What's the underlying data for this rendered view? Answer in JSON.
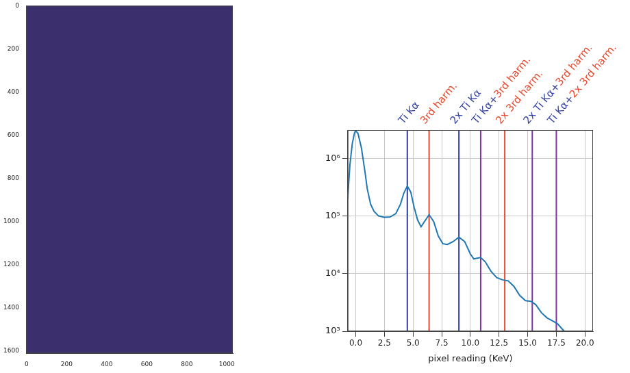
{
  "chart_data": [
    {
      "type": "image",
      "color": "#3b2f6e",
      "xlim": [
        0,
        1030
      ],
      "ylim": [
        0,
        1610
      ],
      "xticks": [
        0,
        200,
        400,
        600,
        800,
        1000
      ],
      "yticks": [
        0,
        200,
        400,
        600,
        800,
        1000,
        1200,
        1400,
        1600
      ],
      "grid": false
    },
    {
      "type": "line",
      "log": "y",
      "grid": true,
      "color": "#1f77b4",
      "xlabel": "pixel reading (KeV)",
      "xlim": [
        -0.7,
        20.7
      ],
      "ylim": [
        1000,
        3100000
      ],
      "xticks": [
        {
          "value": 0,
          "label": "0.0"
        },
        {
          "value": 2.5,
          "label": "2.5"
        },
        {
          "value": 5,
          "label": "5.0"
        },
        {
          "value": 7.5,
          "label": "7.5"
        },
        {
          "value": 10,
          "label": "10.0"
        },
        {
          "value": 12.5,
          "label": "12.5"
        },
        {
          "value": 15,
          "label": "15.0"
        },
        {
          "value": 17.5,
          "label": "17.5"
        },
        {
          "value": 20,
          "label": "20.0"
        }
      ],
      "yticks": [
        {
          "value": 1000,
          "label": "10³"
        },
        {
          "value": 10000,
          "label": "10⁴"
        },
        {
          "value": 100000,
          "label": "10⁵"
        },
        {
          "value": 1000000,
          "label": "10⁶"
        }
      ],
      "x": [
        -0.7,
        -0.5,
        -0.3,
        -0.1,
        0.0,
        0.2,
        0.5,
        0.8,
        1.0,
        1.3,
        1.6,
        2.0,
        2.5,
        3.0,
        3.5,
        3.9,
        4.2,
        4.5,
        4.8,
        5.1,
        5.4,
        5.7,
        6.0,
        6.4,
        6.8,
        7.2,
        7.6,
        8.0,
        8.5,
        9.0,
        9.5,
        10.0,
        10.3,
        10.6,
        10.9,
        11.3,
        11.8,
        12.3,
        12.8,
        13.3,
        13.8,
        14.3,
        14.8,
        15.3,
        15.7,
        16.2,
        16.7,
        17.2,
        17.6,
        18.0,
        18.2
      ],
      "values": [
        200000,
        800000,
        1800000,
        2800000,
        3000000,
        2700000,
        1500000,
        600000,
        300000,
        160000,
        120000,
        100000,
        95000,
        96000,
        110000,
        160000,
        250000,
        330000,
        260000,
        140000,
        85000,
        65000,
        80000,
        105000,
        80000,
        45000,
        33000,
        32000,
        36000,
        43000,
        36000,
        22000,
        18000,
        18500,
        19000,
        16000,
        11000,
        8500,
        7800,
        7500,
        6000,
        4200,
        3400,
        3300,
        2900,
        2100,
        1700,
        1500,
        1350,
        1100,
        1000
      ],
      "annotations": [
        {
          "x": 4.5,
          "color": "#2f3fa3",
          "text": [
            {
              "text": "Ti Kα",
              "color": "#2f3fa3"
            }
          ]
        },
        {
          "x": 6.4,
          "color": "#e8482c",
          "text": [
            {
              "text": "3rd harm.",
              "color": "#e8482c"
            }
          ]
        },
        {
          "x": 9.0,
          "color": "#2f3fa3",
          "text": [
            {
              "text": "2x Ti Kα",
              "color": "#2f3fa3"
            }
          ]
        },
        {
          "x": 10.9,
          "color": "#7d35a3",
          "text": [
            {
              "text": "Ti Kα+",
              "color": "#2f3fa3"
            },
            {
              "text": "3rd harm.",
              "color": "#e8482c"
            }
          ]
        },
        {
          "x": 13.0,
          "color": "#e8482c",
          "text": [
            {
              "text": "2x 3rd harm.",
              "color": "#e8482c"
            }
          ]
        },
        {
          "x": 15.4,
          "color": "#7d35a3",
          "text": [
            {
              "text": "2x Ti Kα+",
              "color": "#2f3fa3"
            },
            {
              "text": "3rd harm.",
              "color": "#e8482c"
            }
          ]
        },
        {
          "x": 17.5,
          "color": "#7d35a3",
          "text": [
            {
              "text": "Ti Kα+",
              "color": "#2f3fa3"
            },
            {
              "text": "2x 3rd harm.",
              "color": "#e8482c"
            }
          ]
        }
      ]
    }
  ]
}
